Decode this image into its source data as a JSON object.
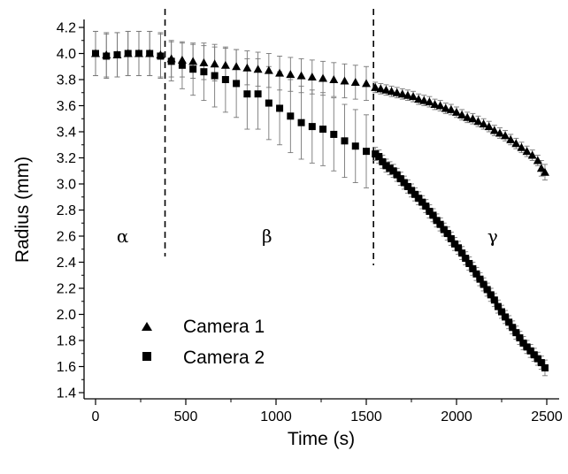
{
  "chart_data": {
    "type": "scatter",
    "title": "",
    "xlabel": "Time (s)",
    "ylabel": "Radius (mm)",
    "xlim": [
      -50,
      2560
    ],
    "ylim": [
      1.3,
      4.2
    ],
    "xticks": [
      0,
      500,
      1000,
      1500,
      2000,
      2500
    ],
    "yticks": [
      1.4,
      1.6,
      1.8,
      2.0,
      2.2,
      2.4,
      2.6,
      2.8,
      3.0,
      3.2,
      3.4,
      3.6,
      3.8,
      4.0,
      4.2
    ],
    "grid": false,
    "legend": {
      "position": "bottom-left"
    },
    "phase_boundaries": [
      385,
      1540
    ],
    "phase_labels": [
      {
        "text": "α",
        "x": 150,
        "y": 2.6
      },
      {
        "text": "β",
        "x": 950,
        "y": 2.6
      },
      {
        "text": "γ",
        "x": 2200,
        "y": 2.6
      }
    ],
    "series": [
      {
        "name": "Camera 1",
        "marker": "triangle",
        "color": "#000000",
        "points": [
          [
            0,
            4.0,
            0.17
          ],
          [
            60,
            3.99,
            0.17
          ],
          [
            120,
            3.99,
            0.17
          ],
          [
            180,
            4.0,
            0.17
          ],
          [
            240,
            4.0,
            0.17
          ],
          [
            300,
            4.0,
            0.17
          ],
          [
            360,
            3.99,
            0.17
          ],
          [
            420,
            3.96,
            0.14
          ],
          [
            480,
            3.95,
            0.13
          ],
          [
            540,
            3.94,
            0.13
          ],
          [
            600,
            3.93,
            0.13
          ],
          [
            660,
            3.92,
            0.13
          ],
          [
            720,
            3.91,
            0.13
          ],
          [
            780,
            3.9,
            0.13
          ],
          [
            840,
            3.89,
            0.13
          ],
          [
            900,
            3.88,
            0.13
          ],
          [
            960,
            3.87,
            0.13
          ],
          [
            1020,
            3.85,
            0.13
          ],
          [
            1080,
            3.84,
            0.13
          ],
          [
            1140,
            3.83,
            0.13
          ],
          [
            1200,
            3.82,
            0.13
          ],
          [
            1260,
            3.81,
            0.13
          ],
          [
            1320,
            3.8,
            0.13
          ],
          [
            1380,
            3.79,
            0.13
          ],
          [
            1440,
            3.78,
            0.13
          ],
          [
            1500,
            3.77,
            0.13
          ],
          [
            1550,
            3.74,
            0.04
          ],
          [
            1580,
            3.73,
            0.04
          ],
          [
            1610,
            3.72,
            0.04
          ],
          [
            1640,
            3.71,
            0.04
          ],
          [
            1670,
            3.7,
            0.04
          ],
          [
            1700,
            3.69,
            0.04
          ],
          [
            1730,
            3.68,
            0.04
          ],
          [
            1760,
            3.67,
            0.04
          ],
          [
            1790,
            3.65,
            0.04
          ],
          [
            1820,
            3.64,
            0.04
          ],
          [
            1850,
            3.63,
            0.04
          ],
          [
            1880,
            3.61,
            0.04
          ],
          [
            1910,
            3.6,
            0.04
          ],
          [
            1940,
            3.58,
            0.04
          ],
          [
            1970,
            3.57,
            0.04
          ],
          [
            2000,
            3.55,
            0.04
          ],
          [
            2030,
            3.53,
            0.04
          ],
          [
            2060,
            3.51,
            0.04
          ],
          [
            2090,
            3.5,
            0.04
          ],
          [
            2120,
            3.48,
            0.04
          ],
          [
            2150,
            3.46,
            0.04
          ],
          [
            2180,
            3.44,
            0.04
          ],
          [
            2210,
            3.41,
            0.04
          ],
          [
            2240,
            3.39,
            0.04
          ],
          [
            2270,
            3.37,
            0.04
          ],
          [
            2300,
            3.34,
            0.04
          ],
          [
            2330,
            3.31,
            0.04
          ],
          [
            2360,
            3.28,
            0.04
          ],
          [
            2390,
            3.25,
            0.04
          ],
          [
            2420,
            3.22,
            0.04
          ],
          [
            2450,
            3.18,
            0.04
          ],
          [
            2470,
            3.12,
            0.06
          ],
          [
            2490,
            3.09,
            0.06
          ]
        ]
      },
      {
        "name": "Camera 2",
        "marker": "square",
        "color": "#000000",
        "points": [
          [
            0,
            4.0,
            0.17
          ],
          [
            60,
            3.98,
            0.17
          ],
          [
            120,
            3.99,
            0.17
          ],
          [
            180,
            4.0,
            0.17
          ],
          [
            240,
            4.0,
            0.17
          ],
          [
            300,
            4.0,
            0.17
          ],
          [
            360,
            3.98,
            0.17
          ],
          [
            420,
            3.94,
            0.15
          ],
          [
            480,
            3.91,
            0.18
          ],
          [
            540,
            3.88,
            0.2
          ],
          [
            600,
            3.86,
            0.22
          ],
          [
            660,
            3.83,
            0.24
          ],
          [
            720,
            3.8,
            0.25
          ],
          [
            780,
            3.77,
            0.26
          ],
          [
            840,
            3.69,
            0.27
          ],
          [
            900,
            3.69,
            0.27
          ],
          [
            960,
            3.62,
            0.28
          ],
          [
            1020,
            3.58,
            0.28
          ],
          [
            1080,
            3.52,
            0.28
          ],
          [
            1140,
            3.47,
            0.28
          ],
          [
            1200,
            3.44,
            0.28
          ],
          [
            1260,
            3.42,
            0.28
          ],
          [
            1320,
            3.38,
            0.28
          ],
          [
            1380,
            3.33,
            0.28
          ],
          [
            1440,
            3.29,
            0.28
          ],
          [
            1500,
            3.25,
            0.28
          ],
          [
            1550,
            3.23,
            0.05
          ],
          [
            1570,
            3.21,
            0.05
          ],
          [
            1590,
            3.17,
            0.05
          ],
          [
            1610,
            3.14,
            0.05
          ],
          [
            1630,
            3.12,
            0.05
          ],
          [
            1650,
            3.1,
            0.05
          ],
          [
            1670,
            3.07,
            0.05
          ],
          [
            1690,
            3.04,
            0.05
          ],
          [
            1710,
            3.01,
            0.05
          ],
          [
            1730,
            2.98,
            0.05
          ],
          [
            1750,
            2.95,
            0.05
          ],
          [
            1770,
            2.92,
            0.05
          ],
          [
            1790,
            2.89,
            0.05
          ],
          [
            1810,
            2.86,
            0.05
          ],
          [
            1830,
            2.83,
            0.05
          ],
          [
            1850,
            2.79,
            0.05
          ],
          [
            1870,
            2.76,
            0.05
          ],
          [
            1890,
            2.72,
            0.05
          ],
          [
            1910,
            2.69,
            0.05
          ],
          [
            1930,
            2.65,
            0.05
          ],
          [
            1950,
            2.62,
            0.05
          ],
          [
            1970,
            2.58,
            0.05
          ],
          [
            1990,
            2.54,
            0.05
          ],
          [
            2010,
            2.51,
            0.05
          ],
          [
            2030,
            2.47,
            0.05
          ],
          [
            2050,
            2.43,
            0.05
          ],
          [
            2070,
            2.39,
            0.05
          ],
          [
            2090,
            2.35,
            0.05
          ],
          [
            2110,
            2.31,
            0.05
          ],
          [
            2130,
            2.27,
            0.05
          ],
          [
            2150,
            2.23,
            0.05
          ],
          [
            2170,
            2.19,
            0.05
          ],
          [
            2190,
            2.15,
            0.05
          ],
          [
            2210,
            2.11,
            0.05
          ],
          [
            2230,
            2.06,
            0.05
          ],
          [
            2250,
            2.02,
            0.05
          ],
          [
            2270,
            1.98,
            0.05
          ],
          [
            2290,
            1.94,
            0.05
          ],
          [
            2310,
            1.9,
            0.05
          ],
          [
            2330,
            1.86,
            0.05
          ],
          [
            2350,
            1.82,
            0.05
          ],
          [
            2370,
            1.78,
            0.05
          ],
          [
            2390,
            1.75,
            0.05
          ],
          [
            2410,
            1.72,
            0.05
          ],
          [
            2430,
            1.69,
            0.05
          ],
          [
            2450,
            1.66,
            0.05
          ],
          [
            2470,
            1.63,
            0.05
          ],
          [
            2490,
            1.59,
            0.06
          ]
        ]
      }
    ]
  }
}
